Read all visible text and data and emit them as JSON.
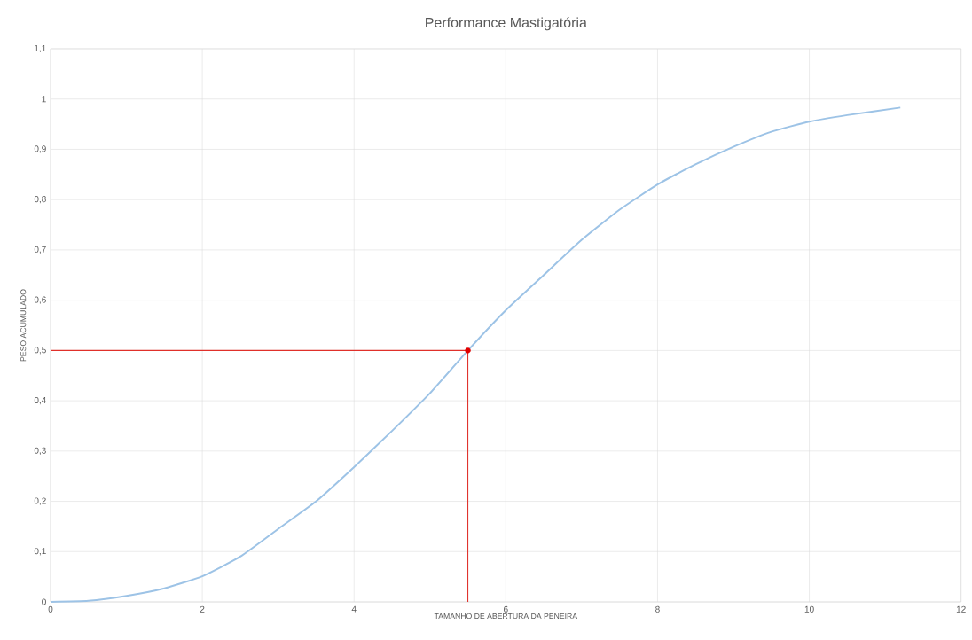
{
  "chart_data": {
    "type": "line",
    "title": "Performance Mastigatória",
    "xlabel": "TAMANHO DE ABERTURA DA PENEIRA",
    "ylabel": "PESO ACUMULADO",
    "xlim": [
      0,
      12
    ],
    "xticks": [
      0,
      2,
      4,
      6,
      8,
      10,
      12
    ],
    "ylim": [
      0,
      1.1
    ],
    "yticks": [
      0,
      {
        "value": 0.1,
        "label": "0,1"
      },
      {
        "value": 0.2,
        "label": "0,2"
      },
      {
        "value": 0.3,
        "label": "0,3"
      },
      {
        "value": 0.4,
        "label": "0,4"
      },
      {
        "value": 0.5,
        "label": "0,5"
      },
      {
        "value": 0.6,
        "label": "0,6"
      },
      {
        "value": 0.7,
        "label": "0,7"
      },
      {
        "value": 0.8,
        "label": "0,8"
      },
      {
        "value": 0.9,
        "label": "0,9"
      },
      1,
      {
        "value": 1.1,
        "label": "1,1"
      }
    ],
    "grid": true,
    "series": [
      {
        "color": "#9dc3e6",
        "x": [
          0,
          0.5,
          1,
          1.5,
          2,
          2.5,
          3,
          3.5,
          4,
          4.5,
          5,
          5.5,
          6,
          6.5,
          7,
          7.5,
          8,
          8.5,
          9,
          9.5,
          10,
          10.5,
          11.2
        ],
        "values": [
          0,
          0.002,
          0.012,
          0.027,
          0.051,
          0.09,
          0.145,
          0.2,
          0.268,
          0.34,
          0.415,
          0.5,
          0.58,
          0.65,
          0.72,
          0.78,
          0.83,
          0.87,
          0.905,
          0.935,
          0.955,
          0.968,
          0.983
        ]
      },
      {
        "type": "line",
        "color": "#e0302a",
        "x": [
          0,
          5.5,
          5.5
        ],
        "values": [
          0.5,
          0.5,
          0
        ]
      },
      {
        "type": "scatter",
        "color": "#e00000",
        "marker": "circle",
        "x": [
          5.5
        ],
        "values": [
          0.5
        ]
      }
    ]
  }
}
